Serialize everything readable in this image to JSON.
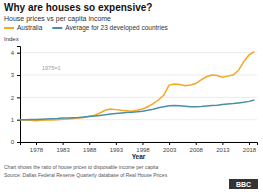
{
  "chart_data": {
    "type": "line",
    "title": "Why are houses so expensive?",
    "subtitle": "House prices vs per capita income",
    "annotation": "1975=1",
    "xlabel": "Year",
    "ylabel": "Index",
    "notes": [
      "Chart shows the ratio of house prices to disposable income per capita",
      "Source: Dallas Federal Reserve Quarterly database of Real House Prices"
    ],
    "logo": "BBC",
    "x": [
      1975,
      1976,
      1977,
      1978,
      1979,
      1980,
      1981,
      1982,
      1983,
      1984,
      1985,
      1986,
      1987,
      1988,
      1989,
      1990,
      1991,
      1992,
      1993,
      1994,
      1995,
      1996,
      1997,
      1998,
      1999,
      2000,
      2001,
      2002,
      2003,
      2004,
      2005,
      2006,
      2007,
      2008,
      2009,
      2010,
      2011,
      2012,
      2013,
      2014,
      2015,
      2016,
      2017,
      2018,
      2019
    ],
    "series": [
      {
        "name": "Australia",
        "color": "#f5a623",
        "values": [
          1.0,
          0.98,
          0.97,
          0.95,
          0.97,
          0.98,
          0.99,
          1.0,
          1.02,
          1.03,
          1.05,
          1.07,
          1.1,
          1.15,
          1.2,
          1.3,
          1.42,
          1.48,
          1.45,
          1.42,
          1.4,
          1.38,
          1.42,
          1.48,
          1.58,
          1.72,
          1.88,
          2.1,
          2.55,
          2.6,
          2.58,
          2.52,
          2.55,
          2.62,
          2.78,
          2.92,
          3.0,
          2.98,
          2.9,
          2.95,
          3.0,
          3.2,
          3.6,
          3.9,
          4.05
        ]
      },
      {
        "name": "Average for 23 developed countries",
        "color": "#4a90a4",
        "values": [
          1.0,
          1.0,
          1.01,
          1.01,
          1.02,
          1.03,
          1.04,
          1.05,
          1.07,
          1.08,
          1.09,
          1.1,
          1.12,
          1.14,
          1.16,
          1.19,
          1.22,
          1.25,
          1.28,
          1.3,
          1.32,
          1.33,
          1.35,
          1.38,
          1.42,
          1.47,
          1.53,
          1.58,
          1.62,
          1.63,
          1.62,
          1.6,
          1.58,
          1.58,
          1.59,
          1.61,
          1.63,
          1.65,
          1.68,
          1.7,
          1.72,
          1.75,
          1.78,
          1.82,
          1.88
        ]
      }
    ],
    "xlim": [
      1975,
      2019.5
    ],
    "xticks": [
      1978,
      1983,
      1988,
      1993,
      1998,
      2003,
      2008,
      2013,
      2018
    ],
    "ylim": [
      0,
      4.3
    ],
    "yticks": [
      0,
      1,
      2,
      3,
      4
    ],
    "grid": true
  }
}
